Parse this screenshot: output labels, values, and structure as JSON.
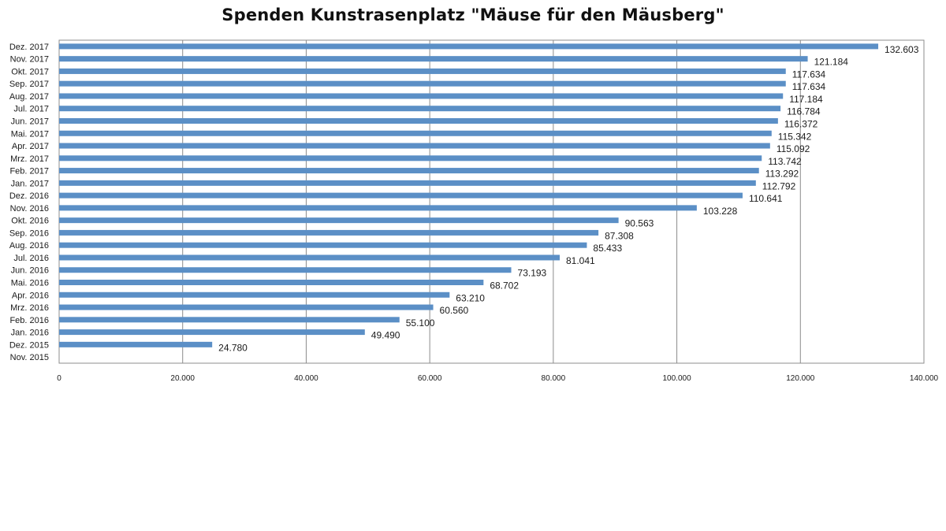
{
  "chart_data": {
    "type": "bar",
    "orientation": "horizontal",
    "title": "Spenden Kunstrasenplatz \"Mäuse für den Mäusberg\"",
    "xlabel": "",
    "ylabel": "",
    "xlim": [
      0,
      140000
    ],
    "grid": true,
    "legend": "none",
    "bar_color": "#5b8fc6",
    "x_ticks": [
      {
        "value": 0,
        "label": "0"
      },
      {
        "value": 20000,
        "label": "20.000"
      },
      {
        "value": 40000,
        "label": "40.000"
      },
      {
        "value": 60000,
        "label": "60.000"
      },
      {
        "value": 80000,
        "label": "80.000"
      },
      {
        "value": 100000,
        "label": "100.000"
      },
      {
        "value": 120000,
        "label": "120.000"
      },
      {
        "value": 140000,
        "label": "140.000"
      }
    ],
    "categories": [
      "Dez. 2017",
      "Nov. 2017",
      "Okt. 2017",
      "Sep. 2017",
      "Aug. 2017",
      "Jul. 2017",
      "Jun. 2017",
      "Mai. 2017",
      "Apr. 2017",
      "Mrz. 2017",
      "Feb. 2017",
      "Jan. 2017",
      "Dez. 2016",
      "Nov. 2016",
      "Okt. 2016",
      "Sep. 2016",
      "Aug. 2016",
      "Jul. 2016",
      "Jun. 2016",
      "Mai. 2016",
      "Apr. 2016",
      "Mrz. 2016",
      "Feb. 2016",
      "Jan. 2016",
      "Dez. 2015",
      "Nov. 2015"
    ],
    "values": [
      132603,
      121184,
      117634,
      117634,
      117184,
      116784,
      116372,
      115342,
      115092,
      113742,
      113292,
      112792,
      110641,
      103228,
      90563,
      87308,
      85433,
      81041,
      73193,
      68702,
      63210,
      60560,
      55100,
      49490,
      24780,
      0
    ],
    "value_labels": [
      "132.603",
      "121.184",
      "117.634",
      "117.634",
      "117.184",
      "116.784",
      "116.372",
      "115.342",
      "115.092",
      "113.742",
      "113.292",
      "112.792",
      "110.641",
      "103.228",
      "90.563",
      "87.308",
      "85.433",
      "81.041",
      "73.193",
      "68.702",
      "63.210",
      "60.560",
      "55.100",
      "49.490",
      "24.780",
      ""
    ]
  }
}
